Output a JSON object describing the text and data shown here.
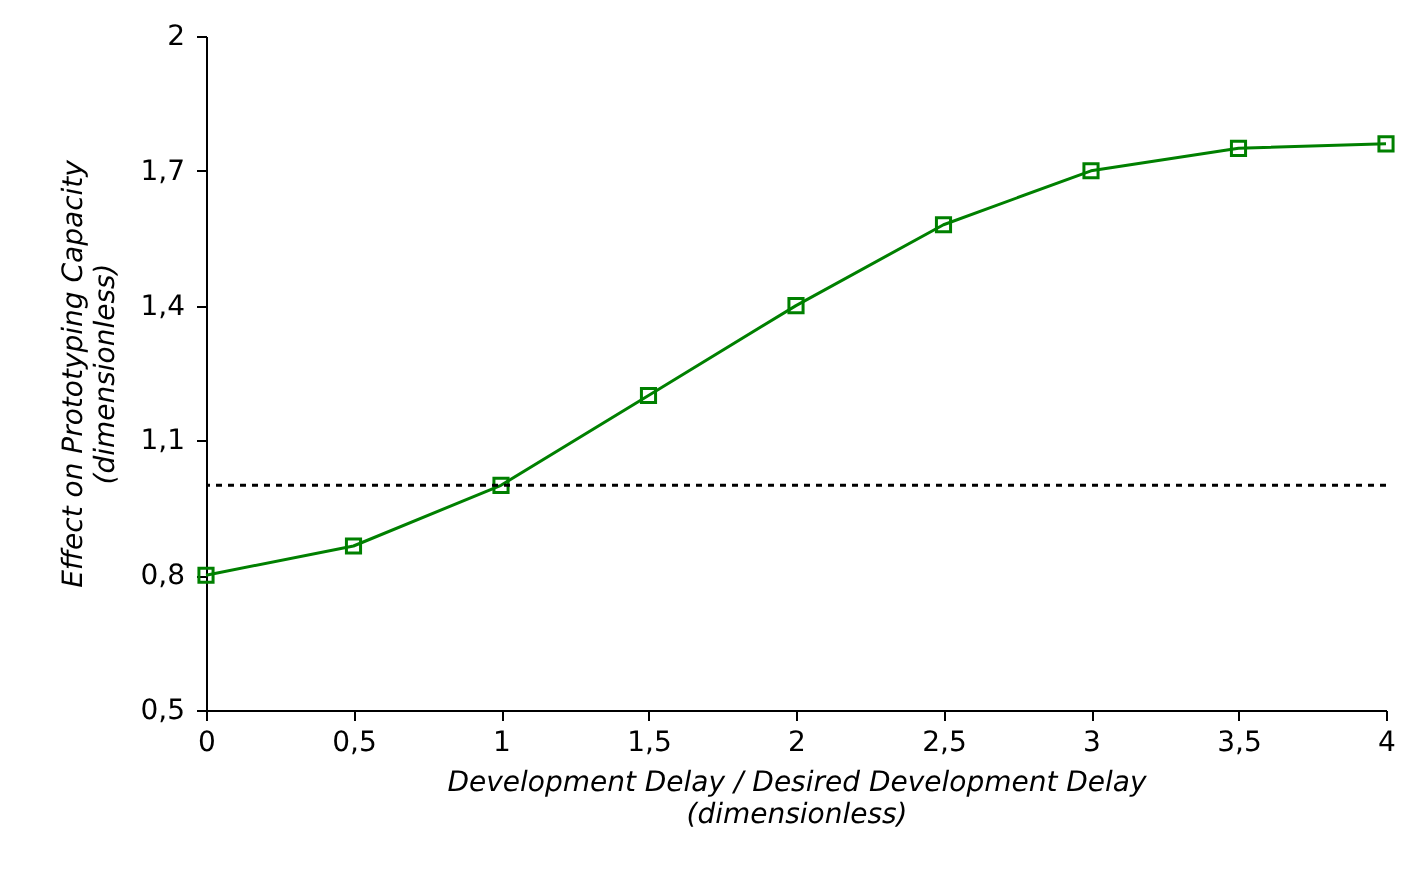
{
  "chart_data": {
    "type": "line",
    "xlabel": "Development Delay / Desired Development Delay\n(dimensionless)",
    "ylabel": "Effect on Prototyping Capacity\n(dimensionless)",
    "x": [
      0,
      0.5,
      1,
      1.5,
      2,
      2.5,
      3,
      3.5,
      4
    ],
    "series": [
      {
        "color": "#008000",
        "values": [
          0.8,
          0.865,
          1.0,
          1.2,
          1.4,
          1.58,
          1.7,
          1.75,
          1.76
        ]
      }
    ],
    "marker": "square",
    "line_style": "solid",
    "grid": false,
    "xlim": [
      0,
      4
    ],
    "xticks": [
      0,
      {
        "value": 0.5,
        "label": "0,5"
      },
      1,
      {
        "value": 1.5,
        "label": "1,5"
      },
      2,
      {
        "value": 2.5,
        "label": "2,5"
      },
      3,
      {
        "value": 3.5,
        "label": "3,5"
      },
      4
    ],
    "ylim": [
      0.5,
      2
    ],
    "yticks": [
      {
        "value": 0.5,
        "label": "0,5"
      },
      {
        "value": 0.8,
        "label": "0,8"
      },
      {
        "value": 1.1,
        "label": "1,1"
      },
      {
        "value": 1.4,
        "label": "1,4"
      },
      {
        "value": 1.7,
        "label": "1,7"
      },
      2
    ],
    "ref_lines": [
      {
        "axis": "y",
        "value": 1.0,
        "color": "#000000",
        "line_style": "dotted"
      }
    ]
  }
}
